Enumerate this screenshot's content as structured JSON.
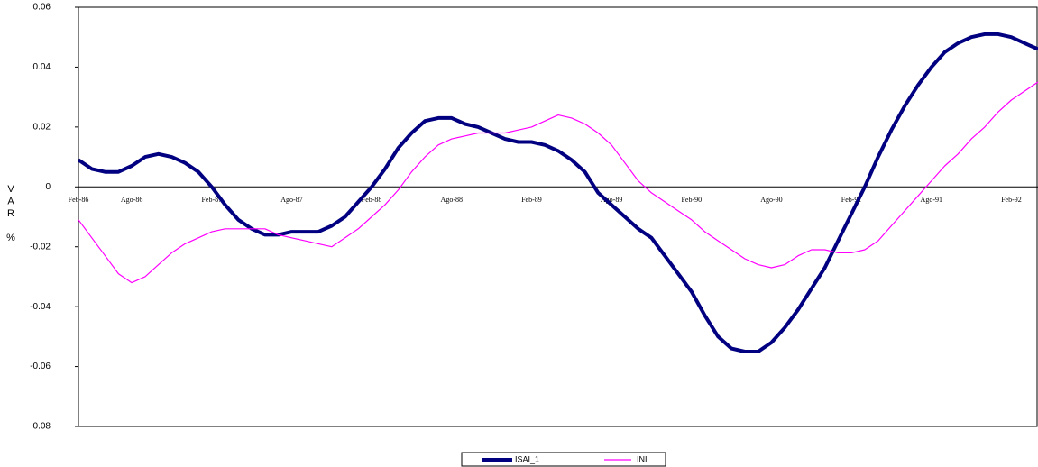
{
  "chart_data": {
    "type": "line",
    "y_label": "VAR %",
    "categories": [
      "Feb-86",
      null,
      null,
      null,
      "Ago-86",
      null,
      null,
      null,
      null,
      null,
      "Feb-87",
      null,
      null,
      null,
      null,
      null,
      "Ago-87",
      null,
      null,
      null,
      null,
      null,
      "Feb-88",
      null,
      null,
      null,
      null,
      null,
      "Ago-88",
      null,
      null,
      null,
      null,
      null,
      "Feb-89",
      null,
      null,
      null,
      null,
      null,
      "Ago-89",
      null,
      null,
      null,
      null,
      null,
      "Feb-90",
      null,
      null,
      null,
      null,
      null,
      "Ago-90",
      null,
      null,
      null,
      null,
      null,
      "Feb-91",
      null,
      null,
      null,
      null,
      null,
      "Ago-91",
      null,
      null,
      null,
      null,
      null,
      "Feb-92",
      null,
      null
    ],
    "series": [
      {
        "name": "ISAI_1",
        "color": "#000080",
        "values": [
          0.009,
          0.006,
          0.005,
          0.005,
          0.007,
          0.01,
          0.011,
          0.01,
          0.008,
          0.005,
          0.0,
          -0.006,
          -0.011,
          -0.014,
          -0.016,
          -0.016,
          -0.015,
          -0.015,
          -0.015,
          -0.013,
          -0.01,
          -0.005,
          0.0,
          0.006,
          0.013,
          0.018,
          0.022,
          0.023,
          0.023,
          0.021,
          0.02,
          0.018,
          0.016,
          0.015,
          0.015,
          0.014,
          0.012,
          0.009,
          0.005,
          -0.002,
          -0.006,
          -0.01,
          -0.014,
          -0.017,
          -0.023,
          -0.029,
          -0.035,
          -0.043,
          -0.05,
          -0.054,
          -0.055,
          -0.055,
          -0.052,
          -0.047,
          -0.041,
          -0.034,
          -0.027,
          -0.018,
          -0.009,
          0.0,
          0.01,
          0.019,
          0.027,
          0.034,
          0.04,
          0.045,
          0.048,
          0.05,
          0.051,
          0.051,
          0.05,
          0.048,
          0.046
        ]
      },
      {
        "name": "INI",
        "color": "#ff00ff",
        "values": [
          -0.011,
          -0.017,
          -0.023,
          -0.029,
          -0.032,
          -0.03,
          -0.026,
          -0.022,
          -0.019,
          -0.017,
          -0.015,
          -0.014,
          -0.014,
          -0.014,
          -0.014,
          -0.016,
          -0.017,
          -0.018,
          -0.019,
          -0.02,
          -0.017,
          -0.014,
          -0.01,
          -0.006,
          -0.001,
          0.005,
          0.01,
          0.014,
          0.016,
          0.017,
          0.018,
          0.018,
          0.018,
          0.019,
          0.02,
          0.022,
          0.024,
          0.023,
          0.021,
          0.018,
          0.014,
          0.008,
          0.002,
          -0.002,
          -0.005,
          -0.008,
          -0.011,
          -0.015,
          -0.018,
          -0.021,
          -0.024,
          -0.026,
          -0.027,
          -0.026,
          -0.023,
          -0.021,
          -0.021,
          -0.022,
          -0.022,
          -0.021,
          -0.018,
          -0.013,
          -0.008,
          -0.003,
          0.002,
          0.007,
          0.011,
          0.016,
          0.02,
          0.025,
          0.029,
          0.032,
          0.035
        ]
      }
    ],
    "ylim": [
      -0.08,
      0.06
    ],
    "yticks": [
      -0.08,
      -0.06,
      -0.04,
      -0.02,
      0,
      0.02,
      0.04,
      0.06
    ],
    "legend": "bottom"
  }
}
